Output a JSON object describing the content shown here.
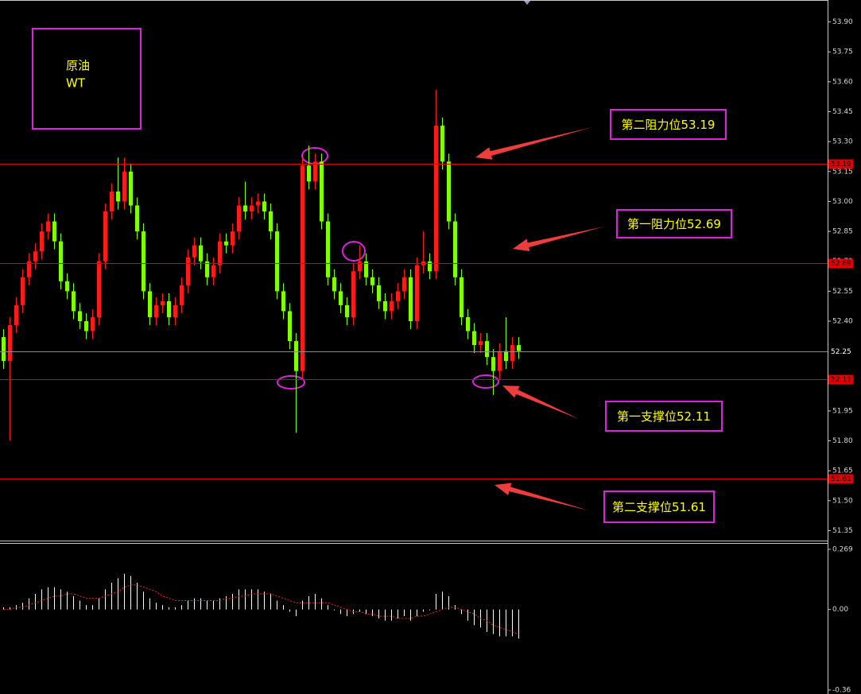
{
  "chart_data": [
    {
      "type": "candlestick",
      "label_lines": [
        "原油",
        "WT"
      ],
      "up_color": "#ff1a1a",
      "down_color": "#80ff00",
      "ylim": [
        51.3,
        54.01
      ],
      "yticks": [
        {
          "value": 53.9,
          "label": "53.90"
        },
        53.75,
        {
          "value": 53.6,
          "label": "53.60"
        },
        53.45,
        {
          "value": 53.3,
          "label": "53.30"
        },
        53.15,
        {
          "value": 53.0,
          "label": "53.00"
        },
        52.85,
        {
          "value": 52.7,
          "label": "52.70"
        },
        52.55,
        {
          "value": 52.4,
          "label": "52.40"
        },
        52.25,
        {
          "value": 52.1,
          "label": "52.10"
        },
        51.95,
        {
          "value": 51.8,
          "label": "51.80"
        },
        51.65,
        {
          "value": 51.5,
          "label": "51.50"
        },
        51.35
      ],
      "levels": [
        {
          "value": 53.19,
          "label": "53.19",
          "color": "#e00000"
        },
        {
          "value": 52.69,
          "label": "52.69",
          "color": "#e00000"
        },
        {
          "value": 52.11,
          "label": "52.11",
          "color": "#e00000"
        },
        {
          "value": 51.61,
          "label": "51.61",
          "color": "#e00000"
        },
        {
          "value": 52.25,
          "label": "52.25",
          "color": "#8c8c8c"
        }
      ],
      "annotations": [
        "第二阻力位53.19",
        "第一阻力位52.69",
        "第一支撑位52.11",
        "第二支撑位51.61"
      ],
      "candles": [
        [
          52.32,
          52.36,
          52.16,
          52.2
        ],
        [
          52.2,
          52.42,
          51.8,
          52.38
        ],
        [
          52.38,
          52.52,
          52.34,
          52.48
        ],
        [
          52.48,
          52.66,
          52.44,
          52.62
        ],
        [
          52.62,
          52.74,
          52.58,
          52.7
        ],
        [
          52.7,
          52.79,
          52.66,
          52.75
        ],
        [
          52.75,
          52.89,
          52.71,
          52.85
        ],
        [
          52.85,
          52.94,
          52.81,
          52.9
        ],
        [
          52.9,
          52.94,
          52.76,
          52.8
        ],
        [
          52.8,
          52.84,
          52.56,
          52.6
        ],
        [
          52.6,
          52.64,
          52.51,
          52.55
        ],
        [
          52.55,
          52.59,
          52.41,
          52.45
        ],
        [
          52.45,
          52.49,
          52.36,
          52.4
        ],
        [
          52.4,
          52.44,
          52.31,
          52.35
        ],
        [
          52.35,
          52.46,
          52.31,
          52.42
        ],
        [
          52.42,
          52.74,
          52.38,
          52.7
        ],
        [
          52.7,
          52.99,
          52.66,
          52.95
        ],
        [
          52.95,
          53.09,
          52.91,
          53.05
        ],
        [
          53.05,
          53.22,
          52.96,
          53.0
        ],
        [
          53.0,
          53.22,
          52.96,
          53.15
        ],
        [
          53.15,
          53.19,
          52.94,
          52.98
        ],
        [
          52.98,
          53.02,
          52.81,
          52.85
        ],
        [
          52.85,
          52.89,
          52.51,
          52.55
        ],
        [
          52.55,
          52.59,
          52.38,
          52.42
        ],
        [
          52.42,
          52.52,
          52.38,
          52.48
        ],
        [
          52.48,
          52.54,
          52.44,
          52.5
        ],
        [
          52.5,
          52.54,
          52.38,
          52.42
        ],
        [
          52.42,
          52.52,
          52.38,
          52.48
        ],
        [
          52.48,
          52.62,
          52.44,
          52.58
        ],
        [
          52.58,
          52.76,
          52.54,
          52.72
        ],
        [
          52.72,
          52.82,
          52.68,
          52.78
        ],
        [
          52.78,
          52.82,
          52.66,
          52.7
        ],
        [
          52.7,
          52.74,
          52.58,
          52.62
        ],
        [
          52.62,
          52.72,
          52.58,
          52.68
        ],
        [
          52.68,
          52.84,
          52.64,
          52.8
        ],
        [
          52.8,
          52.84,
          52.74,
          52.78
        ],
        [
          52.78,
          52.89,
          52.74,
          52.85
        ],
        [
          52.85,
          53.02,
          52.81,
          52.98
        ],
        [
          52.98,
          53.1,
          52.91,
          52.95
        ],
        [
          52.95,
          53.02,
          52.91,
          52.98
        ],
        [
          52.98,
          53.04,
          52.94,
          53.0
        ],
        [
          53.0,
          53.04,
          52.91,
          52.95
        ],
        [
          52.95,
          52.99,
          52.81,
          52.85
        ],
        [
          52.85,
          52.89,
          52.51,
          52.55
        ],
        [
          52.55,
          52.59,
          52.41,
          52.45
        ],
        [
          52.45,
          52.49,
          52.26,
          52.3
        ],
        [
          52.3,
          52.34,
          51.84,
          52.15
        ],
        [
          52.15,
          53.22,
          52.11,
          53.18
        ],
        [
          53.18,
          53.28,
          53.06,
          53.1
        ],
        [
          53.1,
          53.24,
          53.06,
          53.2
        ],
        [
          53.2,
          53.24,
          52.86,
          52.9
        ],
        [
          52.9,
          52.94,
          52.58,
          52.62
        ],
        [
          52.62,
          52.66,
          52.51,
          52.55
        ],
        [
          52.55,
          52.59,
          52.44,
          52.48
        ],
        [
          52.48,
          52.52,
          52.38,
          52.42
        ],
        [
          52.42,
          52.69,
          52.38,
          52.65
        ],
        [
          52.65,
          52.78,
          52.61,
          52.7
        ],
        [
          52.7,
          52.74,
          52.58,
          52.62
        ],
        [
          52.62,
          52.66,
          52.54,
          52.58
        ],
        [
          52.58,
          52.62,
          52.46,
          52.5
        ],
        [
          52.5,
          52.54,
          52.41,
          52.45
        ],
        [
          52.45,
          52.54,
          52.41,
          52.5
        ],
        [
          52.5,
          52.59,
          52.46,
          52.55
        ],
        [
          52.55,
          52.66,
          52.51,
          52.62
        ],
        [
          52.62,
          52.66,
          52.36,
          52.4
        ],
        [
          52.4,
          52.72,
          52.36,
          52.68
        ],
        [
          52.68,
          52.85,
          52.64,
          52.7
        ],
        [
          52.7,
          52.74,
          52.61,
          52.65
        ],
        [
          52.65,
          53.56,
          52.61,
          53.38
        ],
        [
          53.38,
          53.42,
          53.16,
          53.2
        ],
        [
          53.2,
          53.24,
          52.86,
          52.9
        ],
        [
          52.9,
          52.94,
          52.58,
          52.62
        ],
        [
          52.62,
          52.66,
          52.38,
          52.42
        ],
        [
          52.42,
          52.46,
          52.31,
          52.35
        ],
        [
          52.35,
          52.39,
          52.24,
          52.28
        ],
        [
          52.28,
          52.34,
          52.24,
          52.3
        ],
        [
          52.3,
          52.34,
          52.18,
          52.22
        ],
        [
          52.22,
          52.26,
          52.03,
          52.15
        ],
        [
          52.15,
          52.29,
          52.11,
          52.25
        ],
        [
          52.25,
          52.42,
          52.16,
          52.2
        ],
        [
          52.2,
          52.32,
          52.16,
          52.28
        ],
        [
          52.28,
          52.32,
          52.21,
          52.25
        ]
      ]
    },
    {
      "type": "macd",
      "hist_color": "#ffffff",
      "signal_color": "#ff2020",
      "ylim": [
        -0.378,
        0.294
      ],
      "yticks": [
        0.269,
        {
          "value": 0,
          "label": "0.00"
        },
        -0.36
      ],
      "histogram": [
        0.01,
        0.01,
        0.02,
        0.03,
        0.05,
        0.07,
        0.09,
        0.1,
        0.1,
        0.09,
        0.08,
        0.06,
        0.04,
        0.02,
        0.02,
        0.05,
        0.09,
        0.12,
        0.14,
        0.16,
        0.15,
        0.12,
        0.08,
        0.05,
        0.03,
        0.02,
        0.01,
        0.01,
        0.02,
        0.04,
        0.05,
        0.05,
        0.04,
        0.04,
        0.05,
        0.06,
        0.07,
        0.09,
        0.09,
        0.09,
        0.09,
        0.08,
        0.07,
        0.04,
        0.02,
        -0.01,
        -0.03,
        0.04,
        0.06,
        0.07,
        0.05,
        0.02,
        0,
        -0.02,
        -0.03,
        -0.02,
        -0.01,
        -0.02,
        -0.03,
        -0.04,
        -0.05,
        -0.05,
        -0.04,
        -0.03,
        -0.05,
        -0.03,
        -0.01,
        0,
        0.07,
        0.08,
        0.06,
        0.02,
        -0.02,
        -0.05,
        -0.07,
        -0.08,
        -0.1,
        -0.11,
        -0.12,
        -0.12,
        -0.12,
        -0.13
      ],
      "signal": [
        0,
        0,
        0.01,
        0.01,
        0.02,
        0.03,
        0.04,
        0.05,
        0.06,
        0.06,
        0.07,
        0.07,
        0.06,
        0.05,
        0.05,
        0.05,
        0.06,
        0.07,
        0.08,
        0.1,
        0.11,
        0.11,
        0.1,
        0.09,
        0.08,
        0.06,
        0.05,
        0.04,
        0.04,
        0.04,
        0.04,
        0.04,
        0.04,
        0.04,
        0.04,
        0.05,
        0.05,
        0.06,
        0.06,
        0.07,
        0.07,
        0.07,
        0.07,
        0.06,
        0.05,
        0.04,
        0.03,
        0.03,
        0.03,
        0.03,
        0.03,
        0.03,
        0.02,
        0.01,
        0,
        -0.01,
        -0.01,
        -0.02,
        -0.02,
        -0.03,
        -0.03,
        -0.03,
        -0.04,
        -0.04,
        -0.04,
        -0.03,
        -0.03,
        -0.02,
        -0.01,
        0,
        0.01,
        0.01,
        0,
        -0.01,
        -0.02,
        -0.04,
        -0.05,
        -0.07,
        -0.08,
        -0.09,
        -0.1,
        -0.11
      ]
    }
  ]
}
